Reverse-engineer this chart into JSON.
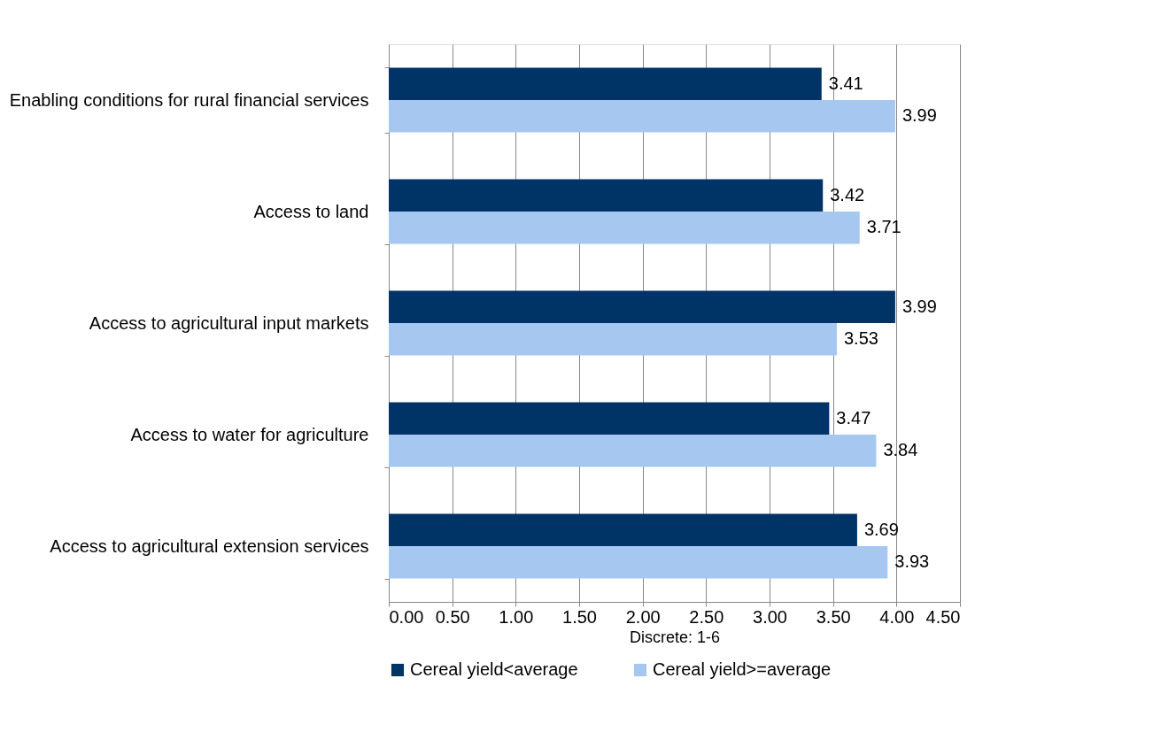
{
  "chart_data": {
    "type": "bar",
    "orientation": "horizontal",
    "xlabel": "Discrete: 1-6",
    "categories": [
      "Enabling conditions for rural financial services",
      "Access to land",
      "Access to agricultural input markets",
      "Access to water for agriculture",
      "Access to agricultural extension services"
    ],
    "series": [
      {
        "name": "Cereal yield<average",
        "color": "#003366",
        "values": [
          3.41,
          3.42,
          3.99,
          3.47,
          3.69
        ]
      },
      {
        "name": "Cereal yield>=average",
        "color": "#a6c8f0",
        "values": [
          3.99,
          3.71,
          3.53,
          3.84,
          3.93
        ]
      }
    ],
    "xlim": [
      0,
      4.5
    ],
    "xticks": [
      {
        "value": 0,
        "label": "0.00"
      },
      {
        "value": 0.5,
        "label": "0.50"
      },
      {
        "value": 1,
        "label": "1.00"
      },
      {
        "value": 1.5,
        "label": "1.50"
      },
      {
        "value": 2,
        "label": "2.00"
      },
      {
        "value": 2.5,
        "label": "2.50"
      },
      {
        "value": 3,
        "label": "3.00"
      },
      {
        "value": 3.5,
        "label": "3.50"
      },
      {
        "value": 4,
        "label": "4.00"
      },
      {
        "value": 4.5,
        "label": "4.50"
      }
    ],
    "grid": "x",
    "legend": "bottom",
    "data_labels": true
  }
}
